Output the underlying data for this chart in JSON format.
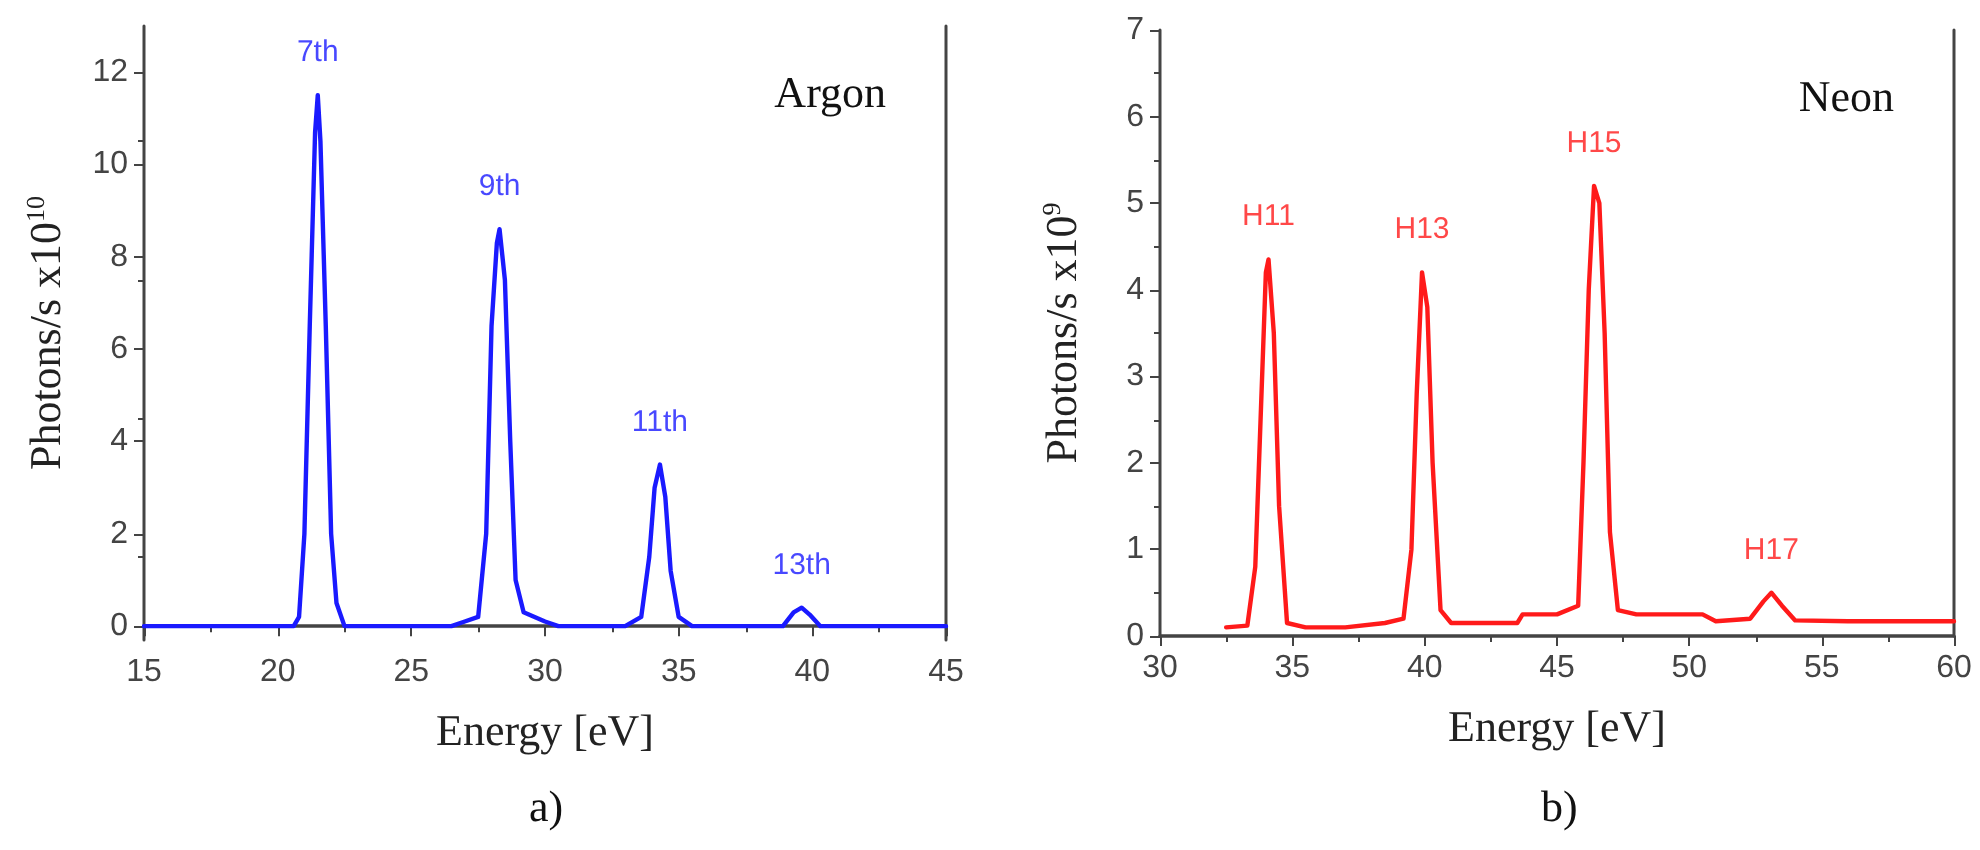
{
  "chart_data": [
    {
      "type": "line",
      "xlabel": "Energy [eV]",
      "ylabel": "Photons/s x10$^{10}$",
      "xlim": [
        15,
        45
      ],
      "xticks": [
        15,
        20,
        25,
        30,
        35,
        40,
        45
      ],
      "ylim": [
        -0.3,
        13
      ],
      "yticks": [
        0,
        2,
        4,
        6,
        8,
        10,
        12
      ],
      "grid": false,
      "marker": "none",
      "line_style": "solid",
      "series": [
        {
          "color": "#1a1aff",
          "x": [
            15,
            20.6,
            20.8,
            21.0,
            21.2,
            21.4,
            21.5,
            21.6,
            21.8,
            22.0,
            22.2,
            22.5,
            26.5,
            27,
            27.5,
            27.8,
            28.0,
            28.2,
            28.3,
            28.5,
            28.7,
            28.9,
            29.2,
            30,
            30.5,
            33,
            33.6,
            33.9,
            34.1,
            34.3,
            34.5,
            34.7,
            35.0,
            35.5,
            38.9,
            39.3,
            39.6,
            39.9,
            40.3,
            45
          ],
          "values": [
            0,
            0,
            0.2,
            2,
            6.5,
            10.7,
            11.5,
            10.5,
            6.5,
            2,
            0.5,
            0,
            0,
            0.1,
            0.2,
            2,
            6.5,
            8.3,
            8.6,
            7.5,
            4,
            1,
            0.3,
            0.1,
            0,
            0,
            0.2,
            1.5,
            3,
            3.5,
            2.8,
            1.2,
            0.2,
            0,
            0,
            0.3,
            0.4,
            0.25,
            0,
            0
          ]
        }
      ],
      "annotations": [
        "Argon",
        "a)",
        {
          "text": "7th",
          "x": 21.5,
          "y": 11.5
        },
        {
          "text": "9th",
          "x": 28.3,
          "y": 8.6
        },
        {
          "text": "11th",
          "x": 34.3,
          "y": 3.5
        },
        {
          "text": "13th",
          "x": 39.6,
          "y": 0.4
        }
      ]
    },
    {
      "type": "line",
      "xlabel": "Energy [eV]",
      "ylabel": "Photons/s x10$^{9}$",
      "xlim": [
        30,
        60
      ],
      "xticks": [
        30,
        35,
        40,
        45,
        50,
        55,
        60
      ],
      "ylim": [
        0,
        7
      ],
      "yticks": [
        0,
        1,
        2,
        3,
        4,
        5,
        6,
        7
      ],
      "grid": false,
      "marker": "none",
      "line_style": "solid",
      "series": [
        {
          "color": "#ff1a1a",
          "x": [
            32.5,
            33.3,
            33.6,
            33.8,
            34.0,
            34.1,
            34.3,
            34.5,
            34.8,
            35.5,
            37,
            38.5,
            39.2,
            39.5,
            39.7,
            39.9,
            40.1,
            40.3,
            40.6,
            41,
            43.5,
            43.7,
            45,
            45.8,
            46.0,
            46.2,
            46.4,
            46.6,
            46.8,
            47.0,
            47.3,
            48,
            50.5,
            51,
            52.3,
            52.8,
            53.1,
            53.5,
            54,
            56,
            60
          ],
          "values": [
            0.1,
            0.12,
            0.8,
            2.5,
            4.2,
            4.35,
            3.5,
            1.5,
            0.15,
            0.1,
            0.1,
            0.15,
            0.2,
            1,
            2.8,
            4.2,
            3.8,
            2,
            0.3,
            0.15,
            0.15,
            0.25,
            0.25,
            0.35,
            2,
            4,
            5.2,
            5.0,
            3.5,
            1.2,
            0.3,
            0.25,
            0.25,
            0.17,
            0.2,
            0.4,
            0.5,
            0.35,
            0.18,
            0.17,
            0.17
          ]
        }
      ],
      "annotations": [
        "Neon",
        "b)",
        {
          "text": "H11",
          "x": 34.1,
          "y": 4.35
        },
        {
          "text": "H13",
          "x": 39.9,
          "y": 4.2
        },
        {
          "text": "H15",
          "x": 46.4,
          "y": 5.2
        },
        {
          "text": "H17",
          "x": 53.1,
          "y": 0.5
        }
      ]
    }
  ]
}
